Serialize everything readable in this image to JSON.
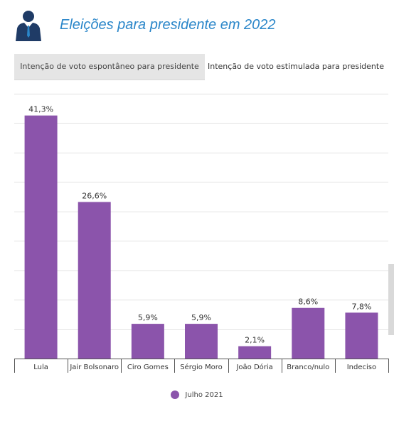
{
  "header": {
    "title": "Eleições para presidente em 2022",
    "icon": "businessman-icon",
    "title_color": "#2a86c9"
  },
  "tabs": [
    {
      "label": "Intenção de voto espontâneo para presidente",
      "active": false
    },
    {
      "label": "Intenção de voto estimulada para presidente",
      "active": true
    }
  ],
  "chart_data": {
    "type": "bar",
    "categories": [
      "Lula",
      "Jair Bolsonaro",
      "Ciro Gomes",
      "Sérgio Moro",
      "João Dória",
      "Branco/nulo",
      "Indeciso"
    ],
    "series": [
      {
        "name": "Julho 2021",
        "values": [
          41.3,
          26.6,
          5.9,
          5.9,
          2.1,
          8.6,
          7.8
        ],
        "color": "#8b54ab"
      }
    ],
    "data_labels": [
      "41,3%",
      "26,6%",
      "5,9%",
      "5,9%",
      "2,1%",
      "8,6%",
      "7,8%"
    ],
    "ylim": [
      0,
      45
    ],
    "grid": true,
    "legend_position": "bottom"
  },
  "legend": {
    "label": "Julho 2021",
    "color": "#8b54ab"
  }
}
